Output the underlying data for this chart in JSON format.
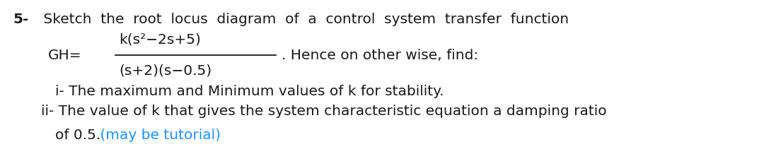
{
  "background_color": "#ffffff",
  "fig_width": 10.8,
  "fig_height": 2.18,
  "line1_bold": "5-",
  "line1_normal": " Sketch  the  root  locus  diagram  of  a  control  system  transfer  function",
  "gh_label": "GH=",
  "numerator": "k(s²−2s+5)",
  "denominator": "(s+2)(s−0.5)",
  "hence_text": ". Hence on other wise, find:",
  "item_i": "i- The maximum and Minimum values of k for stability.",
  "item_ii": "ii- The value of k that gives the system characteristic equation a damping ratio",
  "item_ii_cont": "of 0.5.",
  "item_ii_colored": " (may be tutorial)",
  "font_size_main": 14.5,
  "text_color": "#1a1a1a",
  "highlight_color": "#1E90FF",
  "font_family": "DejaVu Sans"
}
